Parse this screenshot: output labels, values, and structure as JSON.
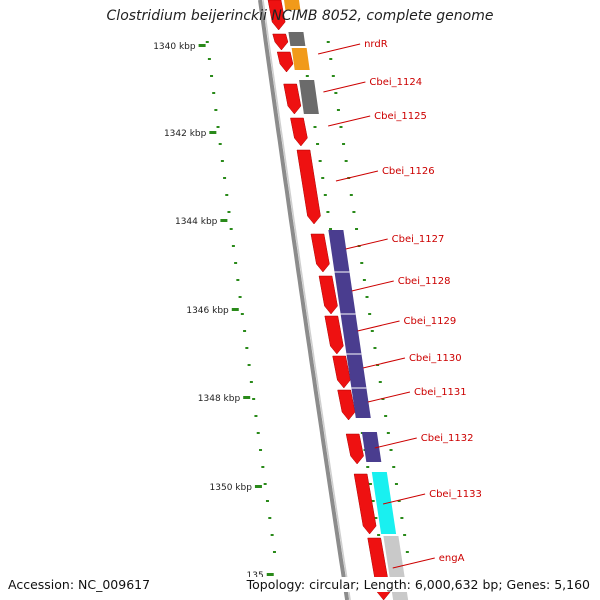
{
  "title": "Clostridium beijerinckii NCIMB 8052, complete genome",
  "accession": "Accession: NC_009617",
  "summary": "Topology: circular; Length: 6,000,632 bp; Genes: 5,160",
  "colors": {
    "forward_cds": "#ee1111",
    "reverse_cds": "#4a3d8f",
    "backbone": "#8c8c8c",
    "ticks": "#2a8a1a",
    "label_text": "#cc0000"
  },
  "scale": {
    "ticks": [
      {
        "label": "1340 kbp"
      },
      {
        "label": "1342 kbp"
      },
      {
        "label": "1344 kbp"
      },
      {
        "label": "1346 kbp"
      },
      {
        "label": "1348 kbp"
      },
      {
        "label": "1350 kbp"
      },
      {
        "label": "135"
      }
    ]
  },
  "gene_labels": [
    {
      "name": "nrdR"
    },
    {
      "name": "Cbei_1124"
    },
    {
      "name": "Cbei_1125"
    },
    {
      "name": "Cbei_1126"
    },
    {
      "name": "Cbei_1127"
    },
    {
      "name": "Cbei_1128"
    },
    {
      "name": "Cbei_1129"
    },
    {
      "name": "Cbei_1130"
    },
    {
      "name": "Cbei_1131"
    },
    {
      "name": "Cbei_1132"
    },
    {
      "name": "Cbei_1133"
    },
    {
      "name": "engA"
    }
  ]
}
